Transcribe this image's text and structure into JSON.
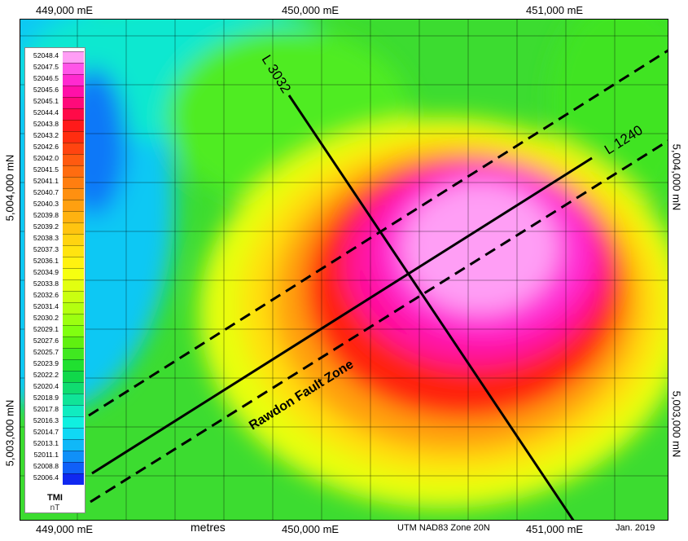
{
  "top_labels": [
    "449,000 mE",
    "450,000 mE",
    "451,000 mE"
  ],
  "bottom_labels": [
    "449,000 mE",
    "metres",
    "450,000 mE",
    "UTM NAD83 Zone 20N",
    "451,000 mE",
    "Jan. 2019"
  ],
  "left_labels": [
    "5,004,000 mN",
    "5,003,000 mN"
  ],
  "right_labels": [
    "5,004,000 mN",
    "5,003,000 mN"
  ],
  "lines": {
    "l3032": "L 3032",
    "l1240": "L 1240",
    "fault": "Rawdon Fault Zone"
  },
  "legend": {
    "title": "TMI",
    "unit": "nT",
    "values": [
      "52048.4",
      "52047.5",
      "52046.5",
      "52045.6",
      "52045.1",
      "52044.4",
      "52043.8",
      "52043.2",
      "52042.6",
      "52042.0",
      "52041.5",
      "52041.1",
      "52040.7",
      "52040.3",
      "52039.8",
      "52039.2",
      "52038.3",
      "52037.3",
      "52036.1",
      "52034.9",
      "52033.8",
      "52032.6",
      "52031.4",
      "52030.2",
      "52029.1",
      "52027.6",
      "52025.7",
      "52023.9",
      "52022.2",
      "52020.4",
      "52018.9",
      "52017.8",
      "52016.3",
      "52014.7",
      "52013.1",
      "52011.1",
      "52008.8",
      "52006.4"
    ],
    "colors": [
      "#ff9ef5",
      "#ff55e8",
      "#ff2ad0",
      "#ff10a8",
      "#ff0a7a",
      "#ff0a48",
      "#ff1a1a",
      "#ff2d10",
      "#ff4410",
      "#ff5a10",
      "#ff6c10",
      "#ff7e10",
      "#ff9010",
      "#ffa010",
      "#ffb210",
      "#ffc410",
      "#ffd410",
      "#ffe410",
      "#fff210",
      "#f6ff10",
      "#e2ff10",
      "#caff10",
      "#b4ff10",
      "#9cff10",
      "#80ff10",
      "#60f010",
      "#40e820",
      "#20e030",
      "#10d84a",
      "#10dc70",
      "#10e498",
      "#10ecc0",
      "#10f0e0",
      "#10d8f4",
      "#10b8f8",
      "#1090f8",
      "#1060f8",
      "#1028f0"
    ]
  }
}
